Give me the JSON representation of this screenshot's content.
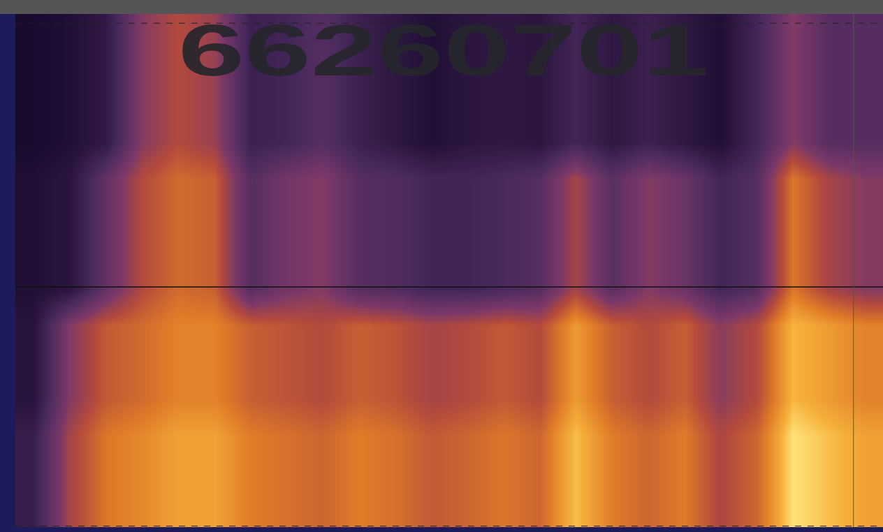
{
  "chart_data": {
    "type": "heatmap",
    "annotations": [
      "66260701"
    ],
    "tick_labels": false,
    "grid": false,
    "cells": [
      [
        0.37,
        0.6,
        0.7,
        0.73,
        0.77,
        0.77,
        0.71,
        0.69,
        0.67,
        0.71,
        0.69,
        0.65,
        0.67,
        0.7,
        0.67,
        0.81,
        0.71,
        0.67,
        0.71,
        0.61,
        0.67,
        0.85,
        0.81,
        0.77
      ],
      [
        0.37,
        0.6,
        0.7,
        0.73,
        0.77,
        0.77,
        0.71,
        0.69,
        0.67,
        0.71,
        0.69,
        0.65,
        0.67,
        0.7,
        0.67,
        0.81,
        0.71,
        0.67,
        0.71,
        0.61,
        0.67,
        0.85,
        0.81,
        0.77
      ],
      [
        0.37,
        0.6,
        0.7,
        0.73,
        0.77,
        0.77,
        0.71,
        0.69,
        0.67,
        0.71,
        0.69,
        0.65,
        0.67,
        0.7,
        0.67,
        0.81,
        0.71,
        0.67,
        0.71,
        0.61,
        0.67,
        0.85,
        0.81,
        0.77
      ],
      [
        0.32,
        0.55,
        0.65,
        0.68,
        0.72,
        0.72,
        0.66,
        0.64,
        0.62,
        0.66,
        0.64,
        0.6,
        0.62,
        0.65,
        0.62,
        0.76,
        0.66,
        0.62,
        0.66,
        0.56,
        0.62,
        0.8,
        0.76,
        0.72
      ],
      [
        0.32,
        0.55,
        0.65,
        0.68,
        0.72,
        0.72,
        0.66,
        0.64,
        0.62,
        0.66,
        0.64,
        0.6,
        0.62,
        0.65,
        0.62,
        0.76,
        0.66,
        0.62,
        0.66,
        0.56,
        0.62,
        0.8,
        0.76,
        0.72
      ],
      [
        0.32,
        0.55,
        0.65,
        0.68,
        0.72,
        0.72,
        0.66,
        0.64,
        0.62,
        0.66,
        0.64,
        0.6,
        0.62,
        0.65,
        0.62,
        0.76,
        0.66,
        0.62,
        0.66,
        0.56,
        0.62,
        0.8,
        0.76,
        0.72
      ],
      [
        0.3,
        0.33,
        0.48,
        0.62,
        0.68,
        0.66,
        0.45,
        0.52,
        0.55,
        0.45,
        0.44,
        0.4,
        0.4,
        0.42,
        0.45,
        0.6,
        0.46,
        0.55,
        0.5,
        0.4,
        0.45,
        0.7,
        0.6,
        0.55
      ],
      [
        0.3,
        0.33,
        0.48,
        0.62,
        0.68,
        0.66,
        0.45,
        0.52,
        0.55,
        0.45,
        0.44,
        0.4,
        0.4,
        0.42,
        0.45,
        0.6,
        0.46,
        0.55,
        0.5,
        0.4,
        0.45,
        0.7,
        0.6,
        0.55
      ],
      [
        0.3,
        0.33,
        0.48,
        0.62,
        0.68,
        0.66,
        0.45,
        0.52,
        0.55,
        0.45,
        0.44,
        0.4,
        0.4,
        0.42,
        0.45,
        0.6,
        0.46,
        0.55,
        0.5,
        0.4,
        0.45,
        0.7,
        0.6,
        0.55
      ],
      [
        0.3,
        0.33,
        0.48,
        0.62,
        0.68,
        0.66,
        0.45,
        0.52,
        0.55,
        0.45,
        0.44,
        0.4,
        0.4,
        0.42,
        0.45,
        0.6,
        0.46,
        0.55,
        0.5,
        0.4,
        0.45,
        0.7,
        0.6,
        0.55
      ],
      [
        0.28,
        0.3,
        0.35,
        0.55,
        0.62,
        0.58,
        0.38,
        0.4,
        0.45,
        0.38,
        0.34,
        0.3,
        0.33,
        0.34,
        0.33,
        0.4,
        0.34,
        0.38,
        0.34,
        0.3,
        0.4,
        0.55,
        0.45,
        0.45
      ],
      [
        0.28,
        0.3,
        0.35,
        0.55,
        0.62,
        0.58,
        0.38,
        0.4,
        0.45,
        0.38,
        0.34,
        0.3,
        0.33,
        0.34,
        0.33,
        0.4,
        0.34,
        0.38,
        0.34,
        0.3,
        0.4,
        0.55,
        0.45,
        0.45
      ],
      [
        0.28,
        0.3,
        0.35,
        0.55,
        0.62,
        0.58,
        0.38,
        0.4,
        0.45,
        0.38,
        0.34,
        0.3,
        0.33,
        0.34,
        0.33,
        0.4,
        0.34,
        0.38,
        0.34,
        0.3,
        0.4,
        0.55,
        0.45,
        0.45
      ],
      [
        0.28,
        0.3,
        0.35,
        0.55,
        0.62,
        0.58,
        0.38,
        0.4,
        0.45,
        0.38,
        0.34,
        0.3,
        0.33,
        0.34,
        0.33,
        0.4,
        0.34,
        0.38,
        0.34,
        0.3,
        0.4,
        0.55,
        0.45,
        0.45
      ]
    ]
  }
}
